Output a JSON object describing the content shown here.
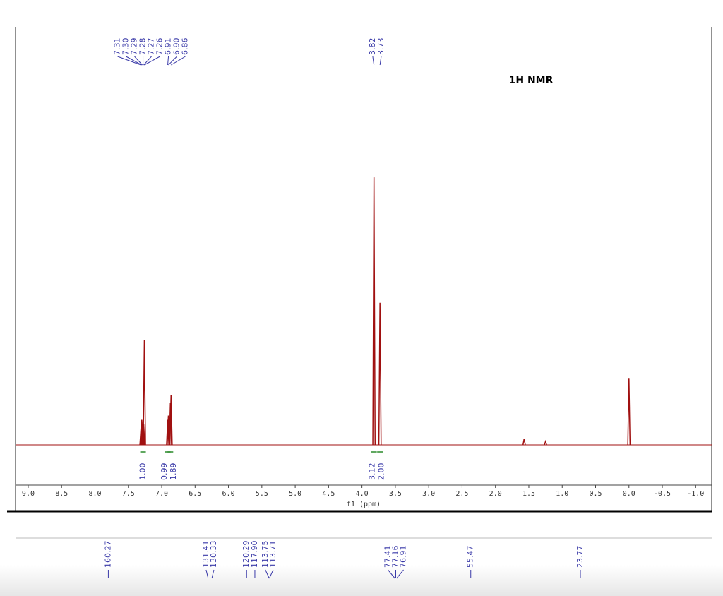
{
  "chart_data": [
    {
      "type": "spectrum",
      "title": "1H NMR",
      "x_label": "f1 (ppm)",
      "xlim": [
        9.19,
        -1.24
      ],
      "ylim": [
        0,
        100
      ],
      "color": "#a01010",
      "label_color": "#3a3aa8",
      "xticks": [
        {
          "value": 9,
          "label": "9.0"
        },
        {
          "value": 8.5,
          "label": "8.5"
        },
        {
          "value": 8,
          "label": "8.0"
        },
        {
          "value": 7.5,
          "label": "7.5"
        },
        {
          "value": 7,
          "label": "7.0"
        },
        {
          "value": 6.5,
          "label": "6.5"
        },
        {
          "value": 6,
          "label": "6.0"
        },
        {
          "value": 5.5,
          "label": "5.5"
        },
        {
          "value": 5,
          "label": "5.0"
        },
        {
          "value": 4.5,
          "label": "4.5"
        },
        {
          "value": 4,
          "label": "4.0"
        },
        {
          "value": 3.5,
          "label": "3.5"
        },
        {
          "value": 3,
          "label": "3.0"
        },
        {
          "value": 2.5,
          "label": "2.5"
        },
        {
          "value": 2,
          "label": "2.0"
        },
        {
          "value": 1.5,
          "label": "1.5"
        },
        {
          "value": 1,
          "label": "1.0"
        },
        {
          "value": 0.5,
          "label": "0.5"
        },
        {
          "value": 0,
          "label": "0.0"
        },
        {
          "value": -0.5,
          "label": "-0.5"
        },
        {
          "value": -1,
          "label": "-1.0"
        }
      ],
      "peaks": {
        "x": [
          7.31,
          7.3,
          7.29,
          7.28,
          7.27,
          7.26,
          6.91,
          6.9,
          6.87,
          6.86,
          3.82,
          3.73,
          1.57,
          1.25,
          0.0
        ],
        "values": [
          4,
          6,
          5,
          6,
          5,
          25,
          6,
          7,
          10,
          12,
          64,
          34,
          1.5,
          0.8,
          16
        ]
      },
      "peak_labels": {
        "x": [
          7.31,
          7.3,
          7.29,
          7.28,
          7.27,
          7.26,
          6.91,
          6.9,
          6.86,
          3.82,
          3.73
        ],
        "labels": [
          "7.31",
          "7.30",
          "7.29",
          "7.28",
          "7.27",
          "7.26",
          "6.91",
          "6.90",
          "6.86",
          "3.82",
          "3.73"
        ]
      },
      "integrals": {
        "x": [
          7.28,
          6.91,
          6.87,
          3.82,
          3.73
        ],
        "values": [
          1,
          0.99,
          1.89,
          3.12,
          2
        ],
        "value_labels": [
          "1.00",
          "0.99",
          "1.89",
          "3.12",
          "2.00"
        ]
      }
    },
    {
      "type": "peak-list",
      "xlim": [
        187.1,
        -14.2
      ],
      "label_color": "#3a3aa8",
      "peak_labels": {
        "x": [
          160.27,
          131.41,
          130.33,
          120.29,
          117.9,
          113.75,
          113.71,
          77.41,
          77.16,
          76.91,
          55.47,
          23.77
        ],
        "labels": [
          "160.27",
          "131.41",
          "130.33",
          "120.29",
          "117.90",
          "113.75",
          "113.71",
          "77.41",
          "77.16",
          "76.91",
          "55.47",
          "23.77"
        ]
      }
    }
  ]
}
